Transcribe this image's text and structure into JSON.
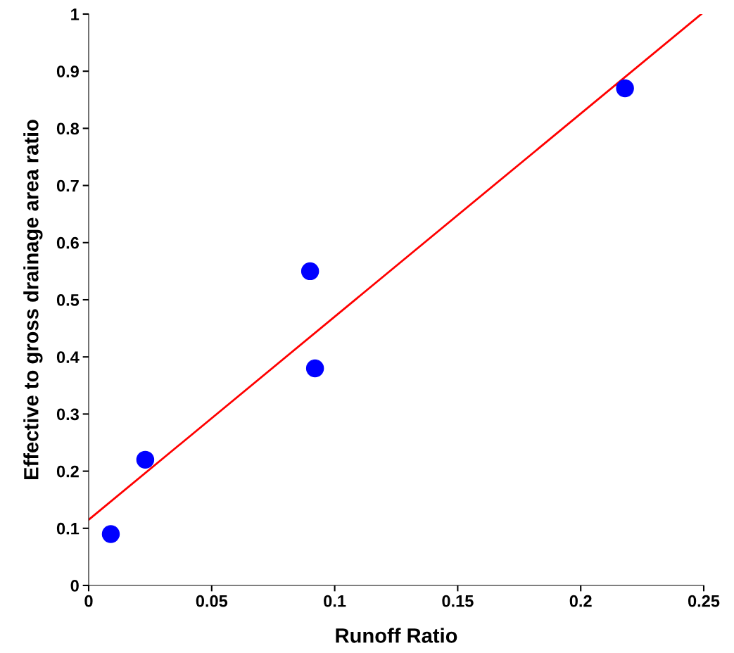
{
  "chart_data": {
    "type": "scatter",
    "xlabel": "Runoff Ratio",
    "ylabel": "Effective to gross drainage area ratio",
    "xlim": [
      0,
      0.25
    ],
    "xticks": [
      0,
      0.05,
      0.1,
      0.15,
      0.2,
      0.25
    ],
    "ylim": [
      0,
      1
    ],
    "yticks": [
      0,
      0.1,
      0.2,
      0.3,
      0.4,
      0.5,
      0.6,
      0.7,
      0.8,
      0.9,
      1
    ],
    "grid": false,
    "series": [
      {
        "marker": "circle",
        "color": "#0000ff",
        "x": [
          0.009,
          0.023,
          0.09,
          0.092,
          0.218
        ],
        "values": [
          0.09,
          0.22,
          0.55,
          0.38,
          0.87
        ]
      },
      {
        "type": "line",
        "color": "#ff0000",
        "x": [
          0,
          0.249
        ],
        "values": [
          0.115,
          1.0
        ]
      }
    ]
  }
}
